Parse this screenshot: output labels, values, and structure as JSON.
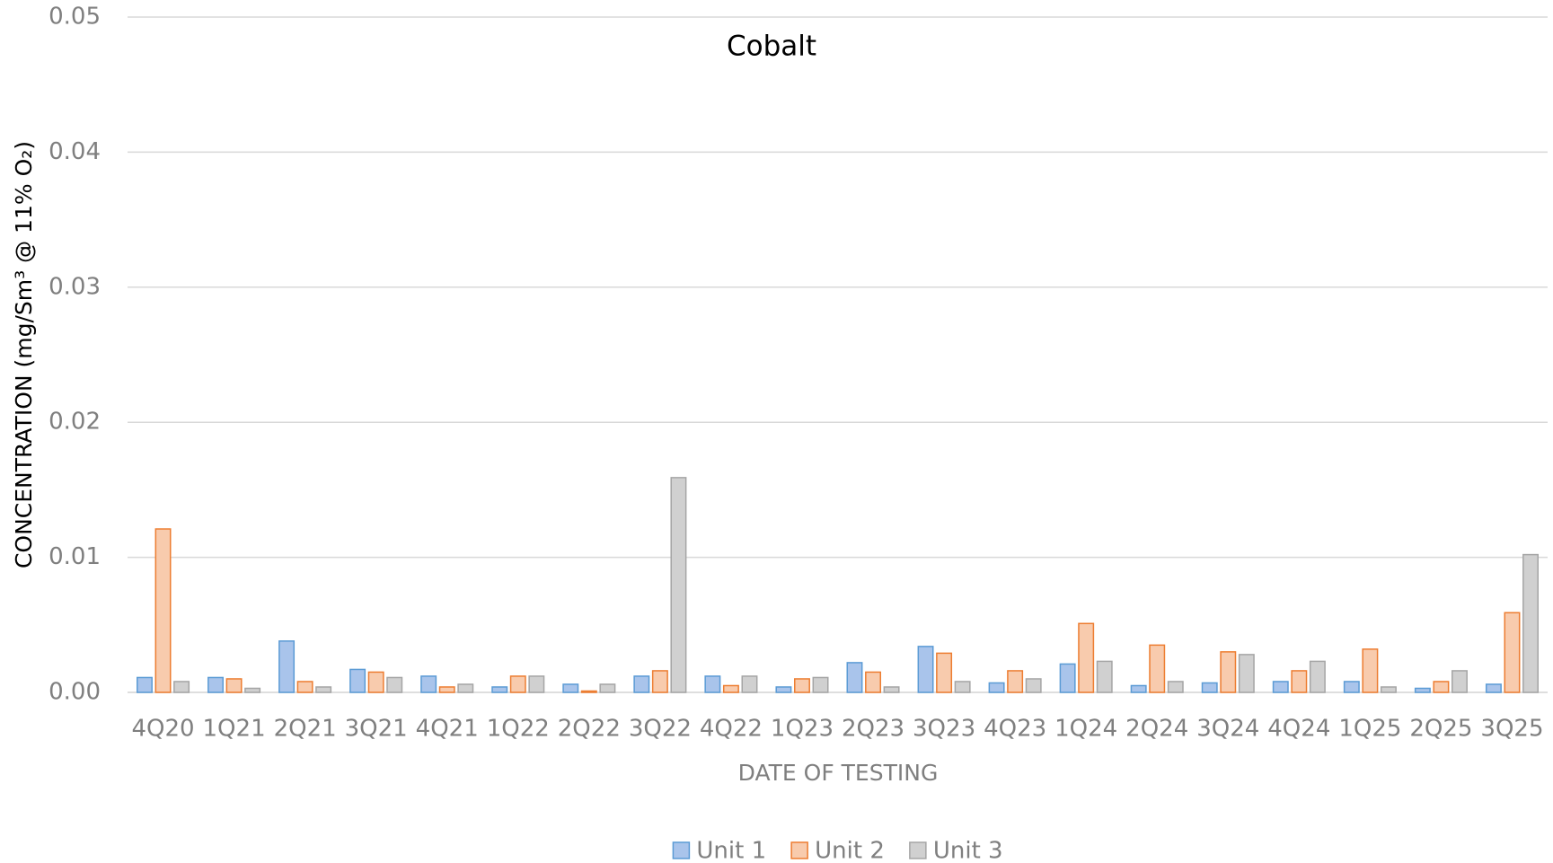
{
  "chart_data": {
    "type": "bar",
    "title": "Cobalt",
    "x_label": "DATE OF TESTING",
    "y_label": "CONCENTRATION (mg/Sm³ @ 11% O₂)",
    "categories": [
      "4Q20",
      "1Q21",
      "2Q21",
      "3Q21",
      "4Q21",
      "1Q22",
      "2Q22",
      "3Q22",
      "4Q22",
      "1Q23",
      "2Q23",
      "3Q23",
      "4Q23",
      "1Q24",
      "2Q24",
      "3Q24",
      "4Q24",
      "1Q25",
      "2Q25",
      "3Q25"
    ],
    "series": [
      {
        "name": "Unit 1",
        "color": "#a9c4eb",
        "edge_color": "#5b9bd5",
        "values": [
          0.0011,
          0.0011,
          0.0038,
          0.0017,
          0.0012,
          0.0004,
          0.0006,
          0.0012,
          0.0012,
          0.0004,
          0.0022,
          0.0034,
          0.0007,
          0.0021,
          0.0005,
          0.0007,
          0.0008,
          0.0008,
          0.0003,
          0.0006
        ]
      },
      {
        "name": "Unit 2",
        "color": "#f8cbad",
        "edge_color": "#ed7d31",
        "values": [
          0.0121,
          0.001,
          0.0008,
          0.0015,
          0.0004,
          0.0012,
          0.0001,
          0.0016,
          0.0005,
          0.001,
          0.0015,
          0.0029,
          0.0016,
          0.0051,
          0.0035,
          0.003,
          0.0016,
          0.0032,
          0.0008,
          0.0059
        ]
      },
      {
        "name": "Unit 3",
        "color": "#d0d0d0",
        "edge_color": "#a5a5a5",
        "values": [
          0.0008,
          0.0003,
          0.0004,
          0.0011,
          0.0006,
          0.0012,
          0.0006,
          0.0159,
          0.0012,
          0.0011,
          0.0004,
          0.0008,
          0.001,
          0.0023,
          0.0008,
          0.0028,
          0.0023,
          0.0004,
          0.0016,
          0.0102
        ]
      }
    ],
    "ylim": [
      0,
      0.05
    ],
    "yticks": [
      {
        "value": 0,
        "label": "0.00"
      },
      0.01,
      0.02,
      0.03,
      0.04,
      0.05
    ],
    "grid": true,
    "legend": "bottom"
  }
}
